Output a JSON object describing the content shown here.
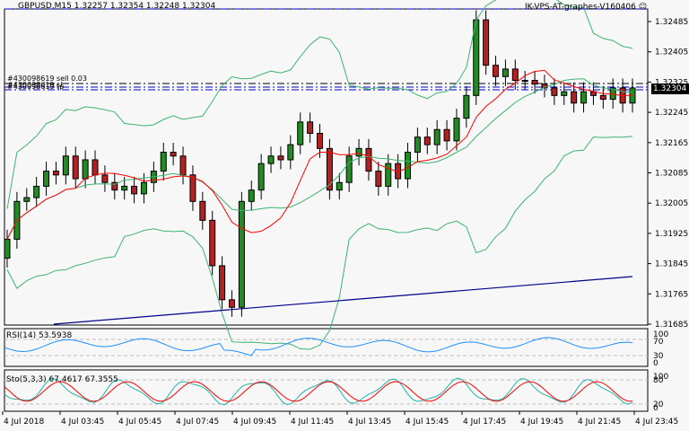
{
  "header": {
    "symbol_info": "GBPUSD,M15",
    "ohlc": "1.32257 1.32354 1.32248 1.32304",
    "ea_name": "IK-VPS-AT-graphes-V160406",
    "smiley_icon": "smiley-icon"
  },
  "orders": {
    "line1": "#430098619 sell 0.03",
    "line2": "#430098619 sl",
    "line3": "#430098619 tp"
  },
  "current_price": "1.32304",
  "rsi": {
    "label": "RSI(14) 53.5938",
    "levels": [
      "100",
      "70",
      "30",
      "0"
    ]
  },
  "stoch": {
    "label": "Sto(5,3,3) 67.4617 67.3555",
    "levels": [
      "100",
      "80",
      "20",
      "0"
    ]
  },
  "colors": {
    "bull": "#228b22",
    "bear": "#b22222",
    "bollinger": "#3cb371",
    "ma_red": "#ff0000",
    "ma_blue": "#00008b",
    "rsi": "#1e90ff",
    "stoch_main": "#20b2aa",
    "stoch_signal": "#ff0000",
    "order_line": "#0000cd",
    "background": "#f7f7f7"
  },
  "chart_data": {
    "type": "candlestick",
    "title": "GBPUSD,M15",
    "price_axis_ticks": [
      "1.32485",
      "1.32405",
      "1.32325",
      "1.32245",
      "1.32165",
      "1.32085",
      "1.32005",
      "1.31925",
      "1.31845",
      "1.31765",
      "1.31685"
    ],
    "time_axis_ticks": [
      "4 Jul 2018",
      "4 Jul 03:45",
      "4 Jul 05:45",
      "4 Jul 07:45",
      "4 Jul 09:45",
      "4 Jul 11:45",
      "4 Jul 13:45",
      "4 Jul 15:45",
      "4 Jul 17:45",
      "4 Jul 19:45",
      "4 Jul 21:45",
      "4 Jul 23:45"
    ],
    "ylim": [
      1.31665,
      1.32515
    ],
    "last_close": 1.32304,
    "rsi_value": 53.5938,
    "stoch_main": 67.4617,
    "stoch_signal": 67.3555,
    "candles_close": [
      1.319,
      1.32,
      1.3201,
      1.3204,
      1.3208,
      1.3207,
      1.3212,
      1.3206,
      1.3211,
      1.3207,
      1.3205,
      1.3203,
      1.3204,
      1.3202,
      1.3205,
      1.3208,
      1.3213,
      1.3212,
      1.3207,
      1.32,
      1.3195,
      1.3183,
      1.3174,
      1.3172,
      1.32,
      1.3203,
      1.321,
      1.3212,
      1.3211,
      1.3215,
      1.3221,
      1.3218,
      1.3214,
      1.3203,
      1.3205,
      1.3212,
      1.3214,
      1.3208,
      1.3204,
      1.321,
      1.3206,
      1.3213,
      1.3217,
      1.3215,
      1.3219,
      1.3216,
      1.3222,
      1.3228,
      1.3248,
      1.3236,
      1.3233,
      1.3235,
      1.3232,
      1.3232,
      1.3231,
      1.323,
      1.3228,
      1.3229,
      1.3226,
      1.3229,
      1.3228,
      1.3227,
      1.323,
      1.3226,
      1.323
    ]
  }
}
